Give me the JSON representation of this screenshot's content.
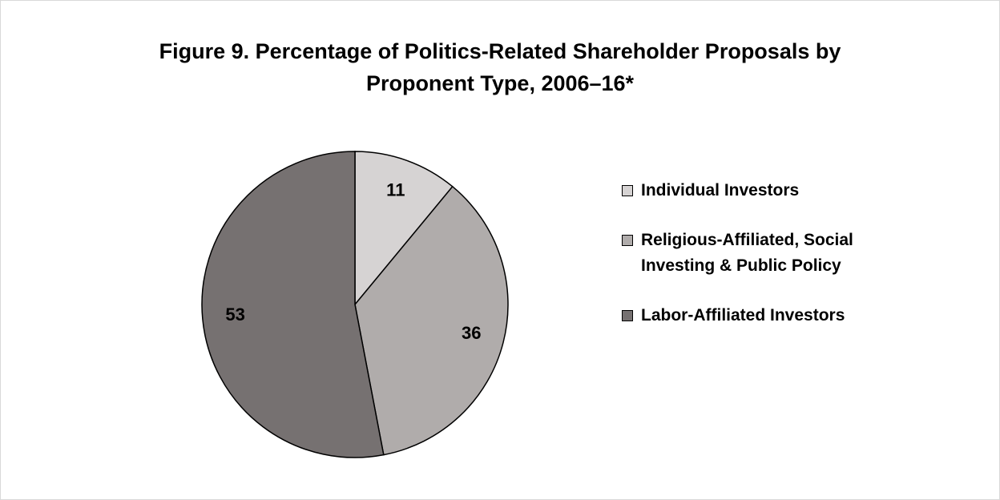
{
  "chart_data": {
    "type": "pie",
    "title": "Figure 9. Percentage of Politics-Related Shareholder Proposals by Proponent Type, 2006–16*",
    "categories": [
      "Individual Investors",
      "Religious-Affiliated, Social Investing & Public Policy",
      "Labor-Affiliated Investors"
    ],
    "values": [
      11,
      36,
      53
    ],
    "colors": [
      "#d6d3d3",
      "#b0acab",
      "#767171"
    ],
    "legend": "right"
  }
}
